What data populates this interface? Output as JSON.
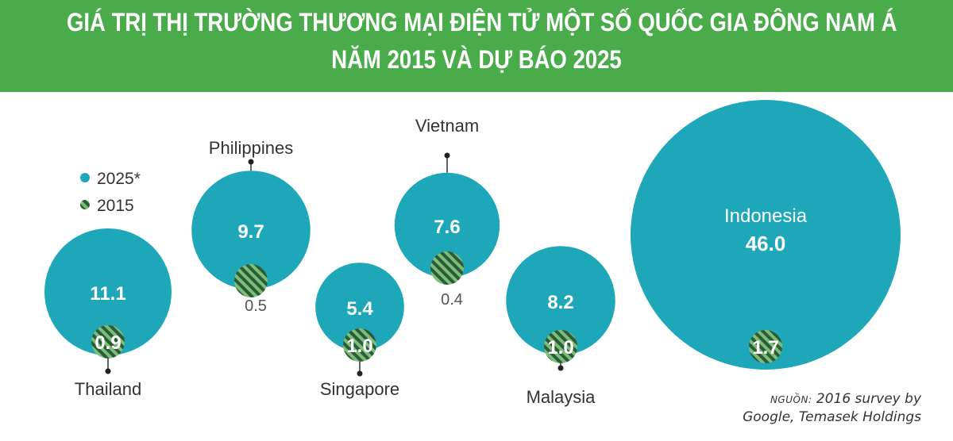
{
  "header": {
    "title_line1": "GIÁ TRỊ THỊ TRƯỜNG THƯƠNG MẠI ĐIỆN TỬ MỘT SỐ QUỐC GIA ĐÔNG NAM Á",
    "title_line2": "NĂM 2015 VÀ DỰ BÁO 2025"
  },
  "legend": {
    "items": [
      {
        "label": "2025*",
        "style": "solid"
      },
      {
        "label": "2015",
        "style": "hatched"
      }
    ]
  },
  "source": {
    "label": "NGUỒN:",
    "line1": "2016 survey by",
    "line2": "Google, Temasek Holdings"
  },
  "colors": {
    "header_bg": "#4aab4a",
    "bubble_2025": "#1ea7b8",
    "hatch_dark": "#2e5a3c",
    "hatch_light": "#7bbf76"
  },
  "chart_data": {
    "type": "bubble",
    "series": [
      {
        "name": "2025*",
        "values": [
          11.1,
          9.7,
          5.4,
          7.6,
          8.2,
          46.0
        ]
      },
      {
        "name": "2015",
        "values": [
          0.9,
          0.5,
          1.0,
          0.4,
          1.0,
          1.7
        ]
      }
    ],
    "categories": [
      "Thailand",
      "Philippines",
      "Singapore",
      "Vietnam",
      "Malaysia",
      "Indonesia"
    ],
    "labels_2025": [
      "11.1",
      "9.7",
      "5.4",
      "7.6",
      "8.2",
      "46.0"
    ],
    "labels_2015": [
      "0.9",
      "0.5",
      "1.0",
      "0.4",
      "1.0",
      "1.7"
    ]
  }
}
